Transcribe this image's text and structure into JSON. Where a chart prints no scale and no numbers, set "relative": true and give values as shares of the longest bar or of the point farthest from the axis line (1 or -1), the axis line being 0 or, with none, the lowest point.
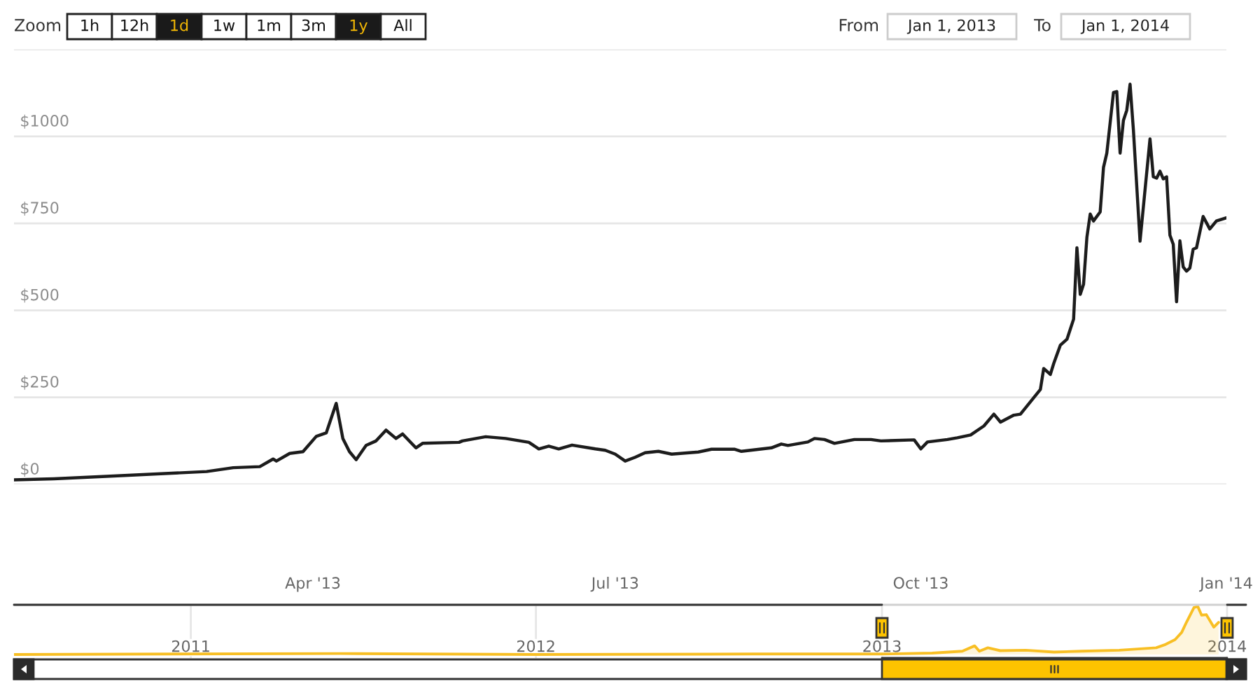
{
  "chart_data": [
    {
      "type": "line",
      "color": "#1c1c1c",
      "x": [
        "2013-01-01",
        "2013-01-13",
        "2013-01-31",
        "2013-02-28",
        "2013-03-08",
        "2013-03-16",
        "2013-03-20",
        "2013-03-21",
        "2013-03-25",
        "2013-03-29",
        "2013-04-02",
        "2013-04-05",
        "2013-04-08",
        "2013-04-10",
        "2013-04-12",
        "2013-04-14",
        "2013-04-17",
        "2013-04-20",
        "2013-04-23",
        "2013-04-26",
        "2013-04-28",
        "2013-05-02",
        "2013-05-04",
        "2013-05-15",
        "2013-05-16",
        "2013-05-23",
        "2013-05-29",
        "2013-06-05",
        "2013-06-08",
        "2013-06-11",
        "2013-06-14",
        "2013-06-18",
        "2013-06-25",
        "2013-06-28",
        "2013-07-01",
        "2013-07-04",
        "2013-07-07",
        "2013-07-10",
        "2013-07-14",
        "2013-07-18",
        "2013-07-26",
        "2013-07-30",
        "2013-08-06",
        "2013-08-08",
        "2013-08-17",
        "2013-08-20",
        "2013-08-22",
        "2013-08-28",
        "2013-08-30",
        "2013-09-02",
        "2013-09-05",
        "2013-09-11",
        "2013-09-16",
        "2013-09-19",
        "2013-09-29",
        "2013-10-01",
        "2013-10-03",
        "2013-10-09",
        "2013-10-12",
        "2013-10-16",
        "2013-10-20",
        "2013-10-23",
        "2013-10-25",
        "2013-10-29",
        "2013-10-31",
        "2013-11-06",
        "2013-11-07",
        "2013-11-09",
        "2013-11-10",
        "2013-11-12",
        "2013-11-14",
        "2013-11-16",
        "2013-11-17",
        "2013-11-18",
        "2013-11-19",
        "2013-11-20",
        "2013-11-21",
        "2013-11-22",
        "2013-11-24",
        "2013-11-25",
        "2013-11-26",
        "2013-11-28",
        "2013-11-29",
        "2013-11-30",
        "2013-12-01",
        "2013-12-02",
        "2013-12-03",
        "2013-12-04",
        "2013-12-06",
        "2013-12-09",
        "2013-12-10",
        "2013-12-11",
        "2013-12-12",
        "2013-12-13",
        "2013-12-14",
        "2013-12-15",
        "2013-12-16",
        "2013-12-17",
        "2013-12-18",
        "2013-12-19",
        "2013-12-20",
        "2013-12-21",
        "2013-12-22",
        "2013-12-23",
        "2013-12-25",
        "2013-12-27",
        "2013-12-29",
        "2014-01-01"
      ],
      "values": [
        13,
        16,
        24,
        37,
        48,
        51,
        73,
        67,
        89,
        94,
        138,
        148,
        233,
        132,
        94,
        71,
        112,
        125,
        156,
        132,
        145,
        105,
        118,
        121,
        125,
        137,
        132,
        121,
        102,
        110,
        102,
        113,
        102,
        98,
        87,
        67,
        78,
        91,
        95,
        87,
        93,
        101,
        101,
        95,
        105,
        116,
        112,
        122,
        132,
        129,
        118,
        129,
        129,
        125,
        128,
        102,
        122,
        129,
        134,
        142,
        168,
        202,
        179,
        199,
        202,
        273,
        333,
        316,
        347,
        400,
        417,
        475,
        680,
        546,
        575,
        710,
        777,
        757,
        783,
        911,
        952,
        1126,
        1129,
        952,
        1046,
        1075,
        1150,
        1019,
        699,
        993,
        884,
        880,
        900,
        878,
        884,
        716,
        690,
        525,
        700,
        625,
        613,
        622,
        676,
        680,
        770,
        734,
        757,
        766
      ],
      "xlim": [
        "2013-01-01",
        "2014-01-01"
      ],
      "xticks": [
        {
          "value": "2013-04-01",
          "label": "Apr '13"
        },
        {
          "value": "2013-07-01",
          "label": "Jul '13"
        },
        {
          "value": "2013-10-01",
          "label": "Oct '13"
        },
        {
          "value": "2014-01-01",
          "label": "Jan '14"
        }
      ],
      "ylim": [
        0,
        1250
      ],
      "yticks": [
        {
          "value": 0,
          "label": "$0"
        },
        {
          "value": 250,
          "label": "$250"
        },
        {
          "value": 500,
          "label": "$500"
        },
        {
          "value": 750,
          "label": "$750"
        },
        {
          "value": 1000,
          "label": "$1000"
        },
        {
          "value": 1250,
          "label": null
        }
      ],
      "grid": "y",
      "annotations": [
        "Zoom",
        "1h",
        "12h",
        "1d",
        "1w",
        "1m",
        "3m",
        "1y",
        "All",
        "From",
        "Jan 1, 2013",
        "To",
        "Jan 1, 2014"
      ]
    },
    {
      "type": "area",
      "color": "#f8bf24",
      "relative": true,
      "x": [
        "2010-06-28",
        "2011-06-08",
        "2012-01-01",
        "2012-08-17",
        "2013-01-01",
        "2013-02-23",
        "2013-03-27",
        "2013-04-09",
        "2013-04-14",
        "2013-04-23",
        "2013-05-06",
        "2013-06-02",
        "2013-07-02",
        "2013-07-31",
        "2013-09-09",
        "2013-10-18",
        "2013-10-28",
        "2013-11-07",
        "2013-11-14",
        "2013-11-19",
        "2013-11-27",
        "2013-12-01",
        "2013-12-05",
        "2013-12-10",
        "2013-12-18",
        "2013-12-23"
      ],
      "values": [
        0.0,
        0.02,
        0.0,
        0.01,
        0.01,
        0.03,
        0.07,
        0.18,
        0.07,
        0.14,
        0.08,
        0.09,
        0.05,
        0.07,
        0.09,
        0.14,
        0.21,
        0.31,
        0.46,
        0.67,
        0.98,
        1.0,
        0.82,
        0.83,
        0.57,
        0.67
      ],
      "xlim": [
        "2010-06-28",
        "2014-01-21"
      ],
      "xticks": [
        {
          "value": "2011-01-01",
          "label": "2011"
        },
        {
          "value": "2012-01-01",
          "label": "2012"
        },
        {
          "value": "2013-01-01",
          "label": "2013"
        },
        {
          "value": "2014-01-01",
          "label": "2014"
        }
      ],
      "grid": "x",
      "tick_labels": "x"
    }
  ]
}
